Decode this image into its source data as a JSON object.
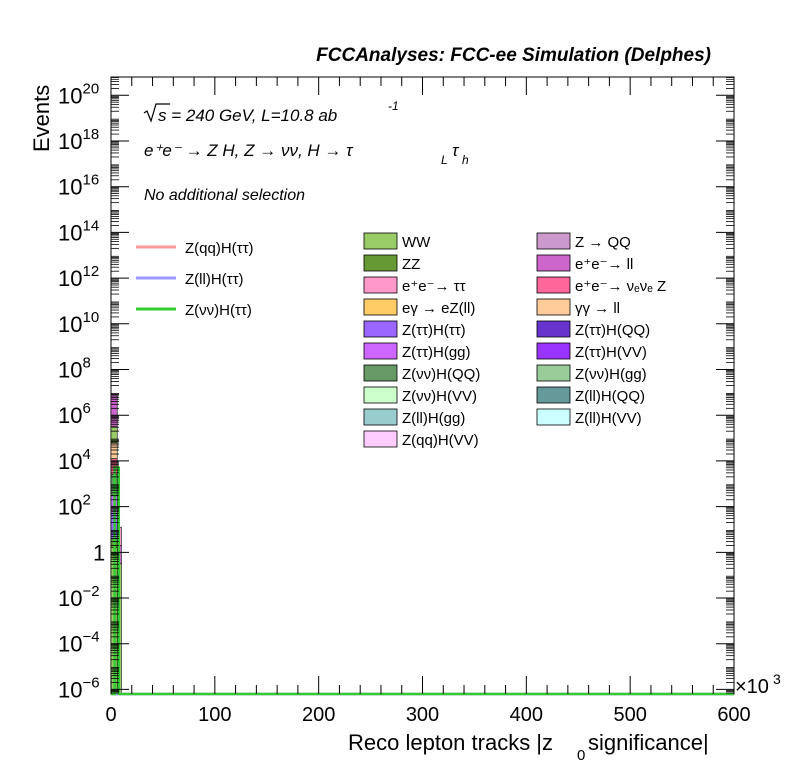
{
  "header": "FCCAnalyses: FCC-ee Simulation (Delphes)",
  "annotations": {
    "sqrt_s": "s = 240 GeV, L=10.8 ab",
    "lumi_exp": "-1",
    "process": "e⁺e⁻ → Z H, Z → νν, H → τ",
    "tau_l": "L",
    "tau_sym": "τ",
    "tau_h": "h",
    "selection": "No additional selection"
  },
  "chart_data": {
    "type": "bar",
    "xlabel": "Reco lepton tracks |z",
    "xlabel_sub": "0",
    "xlabel_tail": " significance|",
    "ylabel": "Events",
    "x_multiplier": "×10",
    "x_multiplier_exp": "3",
    "xlim": [
      0,
      600
    ],
    "ylim_log10": [
      -6.2,
      20.8
    ],
    "y_scale": "log",
    "x_ticks": [
      {
        "value": 0,
        "label": "0"
      },
      {
        "value": 100,
        "label": "100"
      },
      {
        "value": 200,
        "label": "200"
      },
      {
        "value": 300,
        "label": "300"
      },
      {
        "value": 400,
        "label": "400"
      },
      {
        "value": 500,
        "label": "500"
      },
      {
        "value": 600,
        "label": "600"
      }
    ],
    "y_ticks": [
      {
        "exp": -6,
        "base": "10",
        "sup": "−6"
      },
      {
        "exp": -4,
        "base": "10",
        "sup": "−4"
      },
      {
        "exp": -2,
        "base": "10",
        "sup": "−2"
      },
      {
        "exp": 0,
        "base": "1",
        "sup": ""
      },
      {
        "exp": 2,
        "base": "10",
        "sup": "2"
      },
      {
        "exp": 4,
        "base": "10",
        "sup": "4"
      },
      {
        "exp": 6,
        "base": "10",
        "sup": "6"
      },
      {
        "exp": 8,
        "base": "10",
        "sup": "8"
      },
      {
        "exp": 10,
        "base": "10",
        "sup": "10"
      },
      {
        "exp": 12,
        "base": "10",
        "sup": "12"
      },
      {
        "exp": 14,
        "base": "10",
        "sup": "14"
      },
      {
        "exp": 16,
        "base": "10",
        "sup": "16"
      },
      {
        "exp": 18,
        "base": "10",
        "sup": "18"
      },
      {
        "exp": 20,
        "base": "10",
        "sup": "20"
      }
    ],
    "stack_bins": [
      {
        "x0": 0,
        "x1": 6,
        "segments": [
          {
            "log_lo": -6.2,
            "log_hi": 0.2,
            "color": "#99cc66"
          },
          {
            "log_lo": 0.2,
            "log_hi": 0.6,
            "color": "#6a9a3c"
          },
          {
            "log_lo": 0.6,
            "log_hi": 1.7,
            "color": "#9966ff"
          },
          {
            "log_lo": 1.7,
            "log_hi": 2.5,
            "color": "#c971ff"
          },
          {
            "log_lo": 2.5,
            "log_hi": 3.4,
            "color": "#669966"
          },
          {
            "log_lo": 3.4,
            "log_hi": 4.1,
            "color": "#ff6699"
          },
          {
            "log_lo": 4.1,
            "log_hi": 4.8,
            "color": "#ffcc99"
          },
          {
            "log_lo": 4.8,
            "log_hi": 5.5,
            "color": "#99cc66"
          },
          {
            "log_lo": 5.5,
            "log_hi": 6.9,
            "color": "#cc66cc"
          }
        ]
      },
      {
        "x0": 6,
        "x1": 10,
        "segments": [
          {
            "log_lo": -6.2,
            "log_hi": -0.5,
            "color": "#99cc66"
          },
          {
            "log_lo": -0.5,
            "log_hi": 0.3,
            "color": "#cc66cc"
          },
          {
            "log_lo": 0.3,
            "log_hi": 1.1,
            "color": "#ff99cc"
          }
        ]
      }
    ],
    "series": [
      {
        "name": "Z(qq)H(ττ)",
        "color": "#ff9999",
        "points": [
          [
            0,
            -6.2
          ],
          [
            6,
            -6.2
          ],
          [
            600,
            -6.2
          ]
        ]
      },
      {
        "name": "Z(ll)H(ττ)",
        "color": "#9999ff",
        "points": [
          [
            0,
            -6.2
          ],
          [
            6,
            -6.2
          ],
          [
            600,
            -6.2
          ]
        ]
      },
      {
        "name": "Z(νν)H(ττ)",
        "color": "#33cc33",
        "points": [
          [
            0,
            -6.2
          ],
          [
            3.5,
            -6.2
          ],
          [
            3.5,
            3.7
          ],
          [
            7.5,
            3.7
          ],
          [
            7.5,
            -6.2
          ],
          [
            600,
            -6.2
          ]
        ]
      }
    ],
    "legend_lines": [
      {
        "name": "Z(qq)H(ττ)",
        "color": "#ff9999"
      },
      {
        "name": "Z(ll)H(ττ)",
        "color": "#9999ff"
      },
      {
        "name": "Z(νν)H(ττ)",
        "color": "#33cc33"
      }
    ],
    "legend_col1": [
      {
        "name": "WW",
        "color": "#99cc66"
      },
      {
        "name": "ZZ",
        "color": "#669933"
      },
      {
        "name": "e⁺e⁻→ ττ",
        "color": "#ff99cc"
      },
      {
        "name": "eγ → eZ(ll)",
        "color": "#ffcc66"
      },
      {
        "name": "Z(ττ)H(ττ)",
        "color": "#9966ff"
      },
      {
        "name": "Z(ττ)H(gg)",
        "color": "#cc66ff"
      },
      {
        "name": "Z(νν)H(QQ)",
        "color": "#669966"
      },
      {
        "name": "Z(νν)H(VV)",
        "color": "#ccffcc"
      },
      {
        "name": "Z(ll)H(gg)",
        "color": "#99cccc"
      },
      {
        "name": "Z(qq)H(VV)",
        "color": "#ffccff"
      }
    ],
    "legend_col2": [
      {
        "name": "Z → QQ",
        "color": "#cc99cc"
      },
      {
        "name": "e⁺e⁻→ ll",
        "color": "#cc66cc"
      },
      {
        "name": "e⁺e⁻→ νₑνₑ Z",
        "color": "#ff6699"
      },
      {
        "name": "γγ → ll",
        "color": "#ffcc99"
      },
      {
        "name": "Z(ττ)H(QQ)",
        "color": "#6633cc"
      },
      {
        "name": "Z(ττ)H(VV)",
        "color": "#9933ff"
      },
      {
        "name": "Z(νν)H(gg)",
        "color": "#99cc99"
      },
      {
        "name": "Z(ll)H(QQ)",
        "color": "#669999"
      },
      {
        "name": "Z(ll)H(VV)",
        "color": "#ccffff"
      }
    ]
  }
}
